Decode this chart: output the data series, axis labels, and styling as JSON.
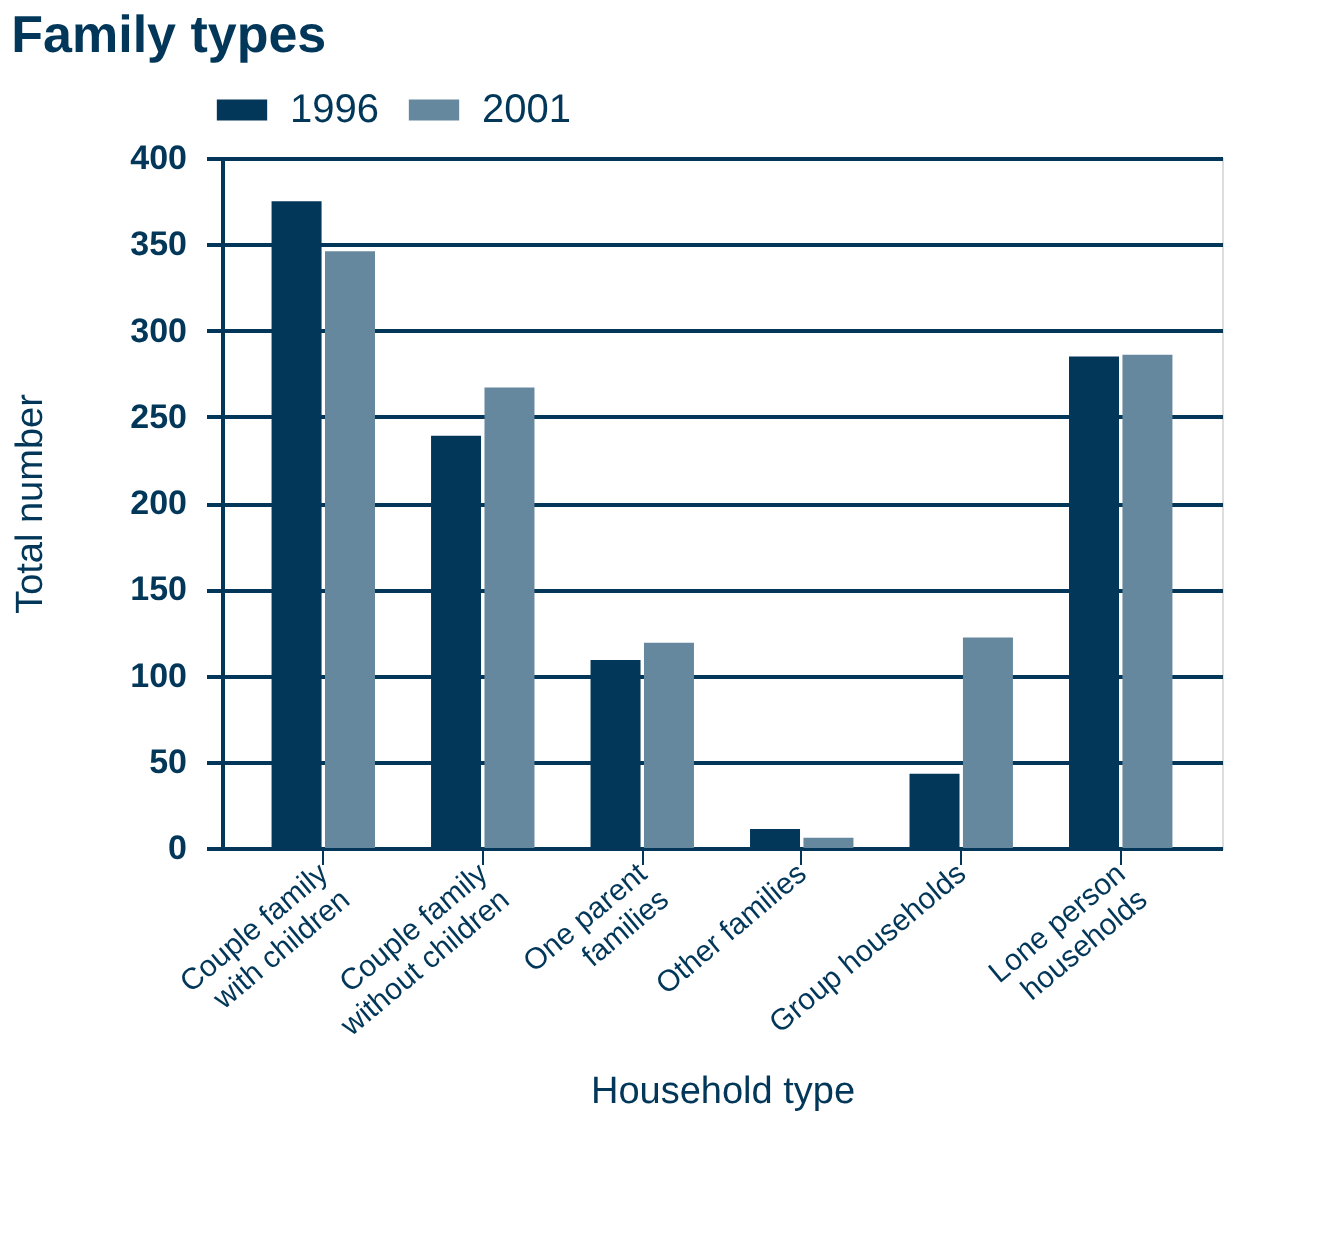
{
  "chart_data": {
    "type": "bar",
    "title": "Family types",
    "xlabel": "Household type",
    "ylabel": "Total number",
    "categories": [
      "Couple family with children",
      "Couple family without children",
      "One parent families",
      "Other families",
      "Group households",
      "Lone person households"
    ],
    "series": [
      {
        "name": "1996",
        "color": "#023759",
        "values": [
          375,
          239,
          109,
          11,
          43,
          285
        ]
      },
      {
        "name": "2001",
        "color": "#66889e",
        "values": [
          346,
          267,
          119,
          6,
          122,
          286
        ]
      }
    ],
    "ylim": [
      0,
      400
    ],
    "yticks": [
      0,
      50,
      100,
      150,
      200,
      250,
      300,
      350,
      400
    ],
    "grid": "y",
    "legend": "top left"
  }
}
